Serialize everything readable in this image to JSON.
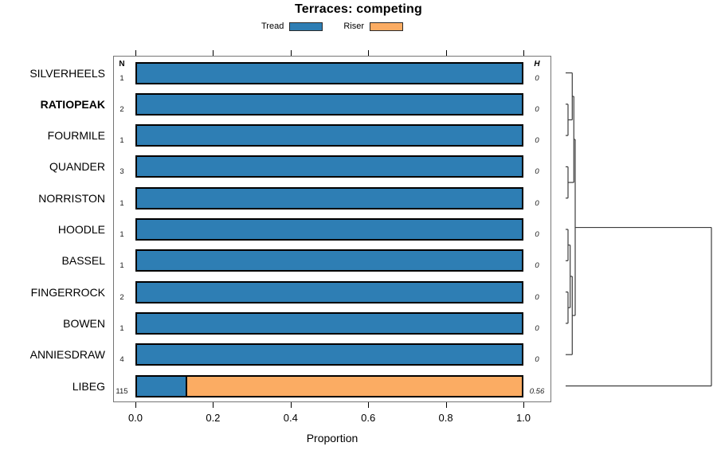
{
  "title": "Terraces: competing",
  "legend": [
    {
      "label": "Tread",
      "color": "#2e7eb4"
    },
    {
      "label": "Riser",
      "color": "#fbac63"
    }
  ],
  "columns": {
    "n": "N",
    "h": "H"
  },
  "axis": {
    "xlabel": "Proportion",
    "ticks": [
      "0.0",
      "0.2",
      "0.4",
      "0.6",
      "0.8",
      "1.0"
    ]
  },
  "rows": [
    {
      "label": "SILVERHEELS",
      "bold": false,
      "n": "1",
      "h": "0",
      "tread": 1.0,
      "riser": 0.0
    },
    {
      "label": "RATIOPEAK",
      "bold": true,
      "n": "2",
      "h": "0",
      "tread": 1.0,
      "riser": 0.0
    },
    {
      "label": "FOURMILE",
      "bold": false,
      "n": "1",
      "h": "0",
      "tread": 1.0,
      "riser": 0.0
    },
    {
      "label": "QUANDER",
      "bold": false,
      "n": "3",
      "h": "0",
      "tread": 1.0,
      "riser": 0.0
    },
    {
      "label": "NORRISTON",
      "bold": false,
      "n": "1",
      "h": "0",
      "tread": 1.0,
      "riser": 0.0
    },
    {
      "label": "HOODLE",
      "bold": false,
      "n": "1",
      "h": "0",
      "tread": 1.0,
      "riser": 0.0
    },
    {
      "label": "BASSEL",
      "bold": false,
      "n": "1",
      "h": "0",
      "tread": 1.0,
      "riser": 0.0
    },
    {
      "label": "FINGERROCK",
      "bold": false,
      "n": "2",
      "h": "0",
      "tread": 1.0,
      "riser": 0.0
    },
    {
      "label": "BOWEN",
      "bold": false,
      "n": "1",
      "h": "0",
      "tread": 1.0,
      "riser": 0.0
    },
    {
      "label": "ANNIESDRAW",
      "bold": false,
      "n": "4",
      "h": "0",
      "tread": 1.0,
      "riser": 0.0
    },
    {
      "label": "LIBEG",
      "bold": false,
      "n": "115",
      "h": "0.56",
      "tread": 0.13,
      "riser": 0.87
    }
  ],
  "dendrogram": {
    "leaf_x": 710,
    "merges": [
      [
        "L1",
        "L2",
        713
      ],
      [
        "L3",
        "L4",
        713
      ],
      [
        "L0",
        "M0",
        718.3
      ],
      [
        "M2",
        "M1",
        720.3
      ],
      [
        "L5",
        "L6",
        713
      ],
      [
        "L7",
        "L8",
        713
      ],
      [
        "M4",
        "M5",
        715.7
      ],
      [
        "M6",
        "L9",
        718.3
      ],
      [
        "M3",
        "M7",
        722
      ],
      [
        "M8",
        "L10",
        893
      ]
    ]
  },
  "chart_data": {
    "type": "bar",
    "orientation": "horizontal",
    "stacked": true,
    "title": "Terraces: competing",
    "xlabel": "Proportion",
    "ylabel": "",
    "xlim": [
      0.0,
      1.0
    ],
    "xticks": [
      0.0,
      0.2,
      0.4,
      0.6,
      0.8,
      1.0
    ],
    "grid": false,
    "legend_position": "top",
    "categories": [
      "SILVERHEELS",
      "RATIOPEAK",
      "FOURMILE",
      "QUANDER",
      "NORRISTON",
      "HOODLE",
      "BASSEL",
      "FINGERROCK",
      "BOWEN",
      "ANNIESDRAW",
      "LIBEG"
    ],
    "series": [
      {
        "name": "Tread",
        "color": "#2e7eb4",
        "values": [
          1.0,
          1.0,
          1.0,
          1.0,
          1.0,
          1.0,
          1.0,
          1.0,
          1.0,
          1.0,
          0.13
        ]
      },
      {
        "name": "Riser",
        "color": "#fbac63",
        "values": [
          0.0,
          0.0,
          0.0,
          0.0,
          0.0,
          0.0,
          0.0,
          0.0,
          0.0,
          0.0,
          0.87
        ]
      }
    ],
    "n_values": [
      1,
      2,
      1,
      3,
      1,
      1,
      1,
      2,
      1,
      4,
      115
    ],
    "h_values": [
      0,
      0,
      0,
      0,
      0,
      0,
      0,
      0,
      0,
      0,
      0.56
    ],
    "emphasized_category": "RATIOPEAK",
    "annotations": "right margin shows hierarchical clustering dendrogram; LIBEG joins remaining clusters at maximum height"
  }
}
